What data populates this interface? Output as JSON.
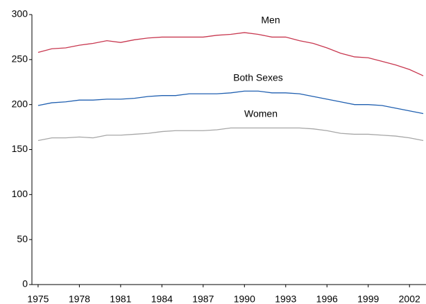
{
  "chart_data": {
    "type": "line",
    "x": [
      1975,
      1976,
      1977,
      1978,
      1979,
      1980,
      1981,
      1982,
      1983,
      1984,
      1985,
      1986,
      1987,
      1988,
      1989,
      1990,
      1991,
      1992,
      1993,
      1994,
      1995,
      1996,
      1997,
      1998,
      1999,
      2000,
      2001,
      2002,
      2003
    ],
    "series": [
      {
        "name": "Men",
        "color": "#c8374f",
        "values": [
          258,
          262,
          263,
          266,
          268,
          271,
          269,
          272,
          274,
          275,
          275,
          275,
          275,
          277,
          278,
          280,
          278,
          275,
          275,
          271,
          268,
          263,
          257,
          253,
          252,
          248,
          244,
          239,
          232
        ]
      },
      {
        "name": "Both Sexes",
        "color": "#1f5fb0",
        "values": [
          199,
          202,
          203,
          205,
          205,
          206,
          206,
          207,
          209,
          210,
          210,
          212,
          212,
          212,
          213,
          215,
          215,
          213,
          213,
          212,
          209,
          206,
          203,
          200,
          200,
          199,
          196,
          193,
          190
        ]
      },
      {
        "name": "Women",
        "color": "#a6a6a6",
        "values": [
          160,
          163,
          163,
          164,
          163,
          166,
          166,
          167,
          168,
          170,
          171,
          171,
          171,
          172,
          174,
          174,
          174,
          174,
          174,
          174,
          173,
          171,
          168,
          167,
          167,
          166,
          165,
          163,
          160
        ]
      }
    ],
    "xlim": [
      1974.55,
      2003.2
    ],
    "xticks": [
      1975,
      1978,
      1981,
      1984,
      1987,
      1990,
      1993,
      1996,
      1999,
      2002
    ],
    "ylim": [
      0,
      300
    ],
    "yticks": [
      0,
      50,
      100,
      150,
      200,
      250,
      300
    ],
    "grid": false
  }
}
